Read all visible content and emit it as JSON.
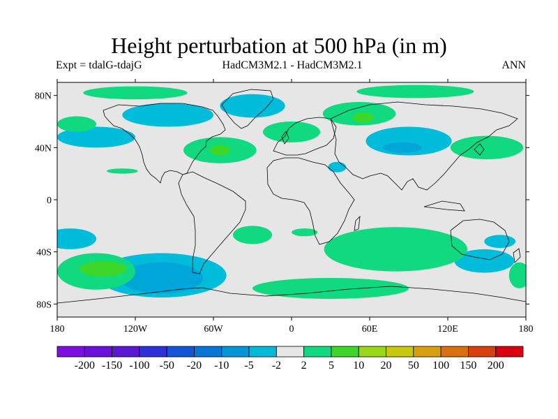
{
  "title": "Height perturbation at 500 hPa (in m)",
  "subtitle_left": "Expt = tdalG-tdajG",
  "subtitle_center": "HadCM3M2.1 - HadCM3M2.1",
  "subtitle_right": "ANN",
  "map": {
    "projection": "cylindrical-equidistant",
    "lon_range": [
      -180,
      180
    ],
    "lat_range": [
      -90,
      90
    ],
    "background_color": "#e6e6e6",
    "coastline_color": "#000000",
    "lat_ticks": [
      {
        "lat": 80,
        "label": "80N"
      },
      {
        "lat": 40,
        "label": "40N"
      },
      {
        "lat": 0,
        "label": "0"
      },
      {
        "lat": -40,
        "label": "40S"
      },
      {
        "lat": -80,
        "label": "80S"
      }
    ],
    "lon_ticks": [
      {
        "lon": -180,
        "label": "180"
      },
      {
        "lon": -120,
        "label": "120W"
      },
      {
        "lon": -60,
        "label": "60W"
      },
      {
        "lon": 0,
        "label": "0"
      },
      {
        "lon": 60,
        "label": "60E"
      },
      {
        "lon": 120,
        "label": "120E"
      },
      {
        "lon": 180,
        "label": "180"
      }
    ],
    "contour_regions": [
      {
        "level": "2 to 5",
        "color": "#10d97f",
        "lon": -120,
        "lat": 82,
        "rx": 40,
        "ry": 5
      },
      {
        "level": "2 to 5",
        "color": "#10d97f",
        "lon": 95,
        "lat": 83,
        "rx": 45,
        "ry": 5
      },
      {
        "level": "-5 to -2",
        "color": "#00bcdb",
        "lon": -150,
        "lat": 48,
        "rx": 30,
        "ry": 8
      },
      {
        "level": "-5 to -2",
        "color": "#00bcdb",
        "lon": -95,
        "lat": 65,
        "rx": 35,
        "ry": 9
      },
      {
        "level": "-5 to -2",
        "color": "#00bcdb",
        "lon": -30,
        "lat": 72,
        "rx": 25,
        "ry": 9
      },
      {
        "level": "-5 to -2",
        "color": "#00bcdb",
        "lon": 90,
        "lat": 45,
        "rx": 33,
        "ry": 11
      },
      {
        "level": "-5 to -2",
        "color": "#00bcdb",
        "lon": 160,
        "lat": -32,
        "rx": 12,
        "ry": 5
      },
      {
        "level": "-5 to -2",
        "color": "#00bcdb",
        "lon": 148,
        "lat": -47,
        "rx": 23,
        "ry": 9
      },
      {
        "level": "-5 to -2",
        "color": "#00bcdb",
        "lon": -170,
        "lat": -30,
        "rx": 20,
        "ry": 8
      },
      {
        "level": "-5 to -2",
        "color": "#00bcdb",
        "lon": -100,
        "lat": -58,
        "rx": 50,
        "ry": 17
      },
      {
        "level": "-5 to -2",
        "color": "#00bcdb",
        "lon": 35,
        "lat": 25,
        "rx": 7,
        "ry": 4
      },
      {
        "level": "-10 to -5",
        "color": "#00a6d8",
        "lon": -100,
        "lat": -60,
        "rx": 32,
        "ry": 12
      },
      {
        "level": "-10 to -5",
        "color": "#00a6d8",
        "lon": 85,
        "lat": 40,
        "rx": 15,
        "ry": 4
      },
      {
        "level": "2 to 5",
        "color": "#10d97f",
        "lon": -165,
        "lat": 58,
        "rx": 15,
        "ry": 6
      },
      {
        "level": "2 to 5",
        "color": "#10d97f",
        "lon": -55,
        "lat": 38,
        "rx": 28,
        "ry": 10
      },
      {
        "level": "2 to 5",
        "color": "#10d97f",
        "lon": 0,
        "lat": 52,
        "rx": 22,
        "ry": 8
      },
      {
        "level": "2 to 5",
        "color": "#10d97f",
        "lon": 52,
        "lat": 66,
        "rx": 28,
        "ry": 9
      },
      {
        "level": "2 to 5",
        "color": "#10d97f",
        "lon": 150,
        "lat": 40,
        "rx": 28,
        "ry": 9
      },
      {
        "level": "2 to 5",
        "color": "#10d97f",
        "lon": -130,
        "lat": 22,
        "rx": 12,
        "ry": 2
      },
      {
        "level": "2 to 5",
        "color": "#10d97f",
        "lon": -150,
        "lat": -55,
        "rx": 30,
        "ry": 14
      },
      {
        "level": "2 to 5",
        "color": "#10d97f",
        "lon": -30,
        "lat": -27,
        "rx": 15,
        "ry": 7
      },
      {
        "level": "2 to 5",
        "color": "#10d97f",
        "lon": 80,
        "lat": -38,
        "rx": 55,
        "ry": 17
      },
      {
        "level": "2 to 5",
        "color": "#10d97f",
        "lon": 10,
        "lat": -25,
        "rx": 10,
        "ry": 3
      },
      {
        "level": "2 to 5",
        "color": "#10d97f",
        "lon": 30,
        "lat": -68,
        "rx": 60,
        "ry": 8
      },
      {
        "level": "2 to 5",
        "color": "#10d97f",
        "lon": 175,
        "lat": -58,
        "rx": 8,
        "ry": 10
      },
      {
        "level": "5 to 10",
        "color": "#3dd72a",
        "lon": -55,
        "lat": 38,
        "rx": 8,
        "ry": 4
      },
      {
        "level": "5 to 10",
        "color": "#3dd72a",
        "lon": 55,
        "lat": 63,
        "rx": 8,
        "ry": 4
      },
      {
        "level": "5 to 10",
        "color": "#3dd72a",
        "lon": -145,
        "lat": -53,
        "rx": 18,
        "ry": 6
      }
    ]
  },
  "colorbar": {
    "colors": [
      "#7b10e0",
      "#6a10d8",
      "#5a18d0",
      "#3030d8",
      "#1455d8",
      "#0876d8",
      "#0096d8",
      "#00b8d8",
      "#e6e6e6",
      "#10d97f",
      "#3dd72a",
      "#98d818",
      "#c8c810",
      "#d8a010",
      "#d87010",
      "#d84010",
      "#d80010"
    ],
    "labels": [
      "-200",
      "-150",
      "-100",
      "-50",
      "-20",
      "-10",
      "-5",
      "-2",
      "2",
      "5",
      "10",
      "20",
      "50",
      "100",
      "150",
      "200"
    ]
  }
}
